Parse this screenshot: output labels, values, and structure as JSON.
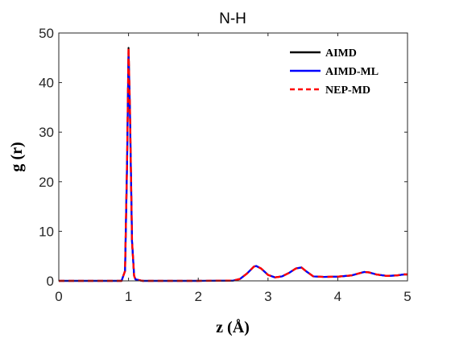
{
  "chart_data": {
    "type": "line",
    "title": "N-H",
    "xlabel": "z (Å)",
    "ylabel": "g (r)",
    "xlim": [
      0,
      5
    ],
    "ylim": [
      0,
      50
    ],
    "xticks": [
      0,
      1,
      2,
      3,
      4,
      5
    ],
    "yticks": [
      0,
      10,
      20,
      30,
      40,
      50
    ],
    "xtick_labels": [
      "0",
      "1",
      "2",
      "3",
      "4",
      "5"
    ],
    "ytick_labels": [
      "0",
      "10",
      "20",
      "30",
      "40",
      "50"
    ],
    "grid": false,
    "legend_position": "top-right",
    "x": [
      0,
      0.5,
      0.9,
      0.95,
      0.98,
      1.0,
      1.02,
      1.05,
      1.08,
      1.1,
      1.2,
      2.0,
      2.5,
      2.6,
      2.7,
      2.8,
      2.83,
      2.9,
      3.0,
      3.1,
      3.2,
      3.3,
      3.4,
      3.48,
      3.55,
      3.65,
      3.8,
      4.0,
      4.2,
      4.3,
      4.38,
      4.45,
      4.55,
      4.7,
      4.85,
      4.95,
      5.0
    ],
    "series": [
      {
        "name": "AIMD",
        "color": "#000000",
        "dash": "solid",
        "values": [
          0,
          0,
          0,
          2,
          25,
          47,
          35,
          8,
          1,
          0.3,
          0,
          0,
          0.05,
          0.4,
          1.5,
          2.9,
          3.0,
          2.5,
          1.2,
          0.7,
          0.9,
          1.6,
          2.5,
          2.7,
          1.9,
          0.9,
          0.8,
          0.85,
          1.1,
          1.5,
          1.8,
          1.7,
          1.3,
          1.0,
          1.1,
          1.3,
          1.3
        ]
      },
      {
        "name": "AIMD-ML",
        "color": "#0000ff",
        "dash": "solid",
        "values": [
          0,
          0,
          0,
          2,
          24,
          46,
          34,
          8,
          1,
          0.3,
          0,
          0,
          0.05,
          0.4,
          1.5,
          2.9,
          3.0,
          2.5,
          1.2,
          0.7,
          0.9,
          1.6,
          2.5,
          2.7,
          1.9,
          0.9,
          0.8,
          0.85,
          1.1,
          1.5,
          1.8,
          1.7,
          1.3,
          1.0,
          1.1,
          1.3,
          1.3
        ]
      },
      {
        "name": "NEP-MD",
        "color": "#ff0000",
        "dash": "dashed",
        "values": [
          0,
          0,
          0,
          2,
          25,
          47,
          35,
          8,
          1,
          0.3,
          0,
          0,
          0.05,
          0.4,
          1.5,
          2.9,
          3.0,
          2.5,
          1.2,
          0.7,
          0.9,
          1.6,
          2.5,
          2.7,
          1.9,
          0.9,
          0.8,
          0.85,
          1.1,
          1.5,
          1.8,
          1.7,
          1.3,
          1.0,
          1.1,
          1.3,
          1.3
        ]
      }
    ]
  }
}
